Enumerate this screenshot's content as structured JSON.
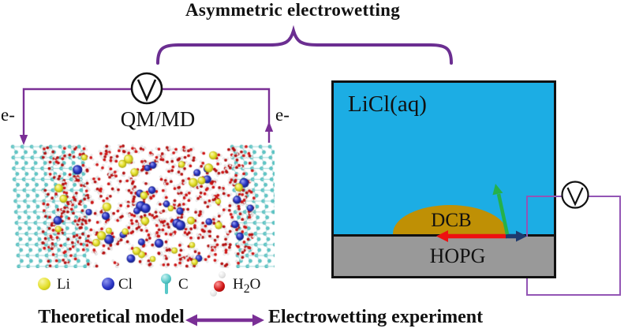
{
  "title": "Asymmetric electrowetting",
  "left_panel": {
    "method_label": "QM/MD",
    "electron_label_left": "e-",
    "electron_label_right": "e-",
    "caption": "Theoretical model",
    "legend": {
      "li": {
        "label": "Li"
      },
      "cl": {
        "label": "Cl"
      },
      "c": {
        "label": "C"
      },
      "h2o": {
        "pre": "H",
        "sub": "2",
        "post": "O"
      }
    }
  },
  "right_panel": {
    "solution_label": "LiCl(aq)",
    "droplet_label": "DCB",
    "substrate_label": "HOPG",
    "caption": "Electrowetting experiment"
  },
  "colors": {
    "wire_purple": "#7A2F96",
    "loop_purple": "#9355B5",
    "brace_purple": "#6B2E91",
    "bottom_arrow_purple": "#7A2F96",
    "solution_cyan": "#1CADE4",
    "substrate_gray": "#999999",
    "droplet_gold": "#BF9005",
    "arrow_red": "#EE1111",
    "arrow_navy": "#1E3A6E",
    "arrow_green": "#25B14A",
    "text_black": "#111111"
  },
  "simulation": {
    "seed": 7,
    "water_count": 680,
    "li_count": 30,
    "cl_count": 30,
    "wall_color": "#5fc9c9",
    "wall_bond_color": "#9adada",
    "water_o_color": "#cf1313",
    "water_h_color": "#ffffff",
    "li_color": "#e6e22e",
    "cl_color": "#2a35c4"
  }
}
